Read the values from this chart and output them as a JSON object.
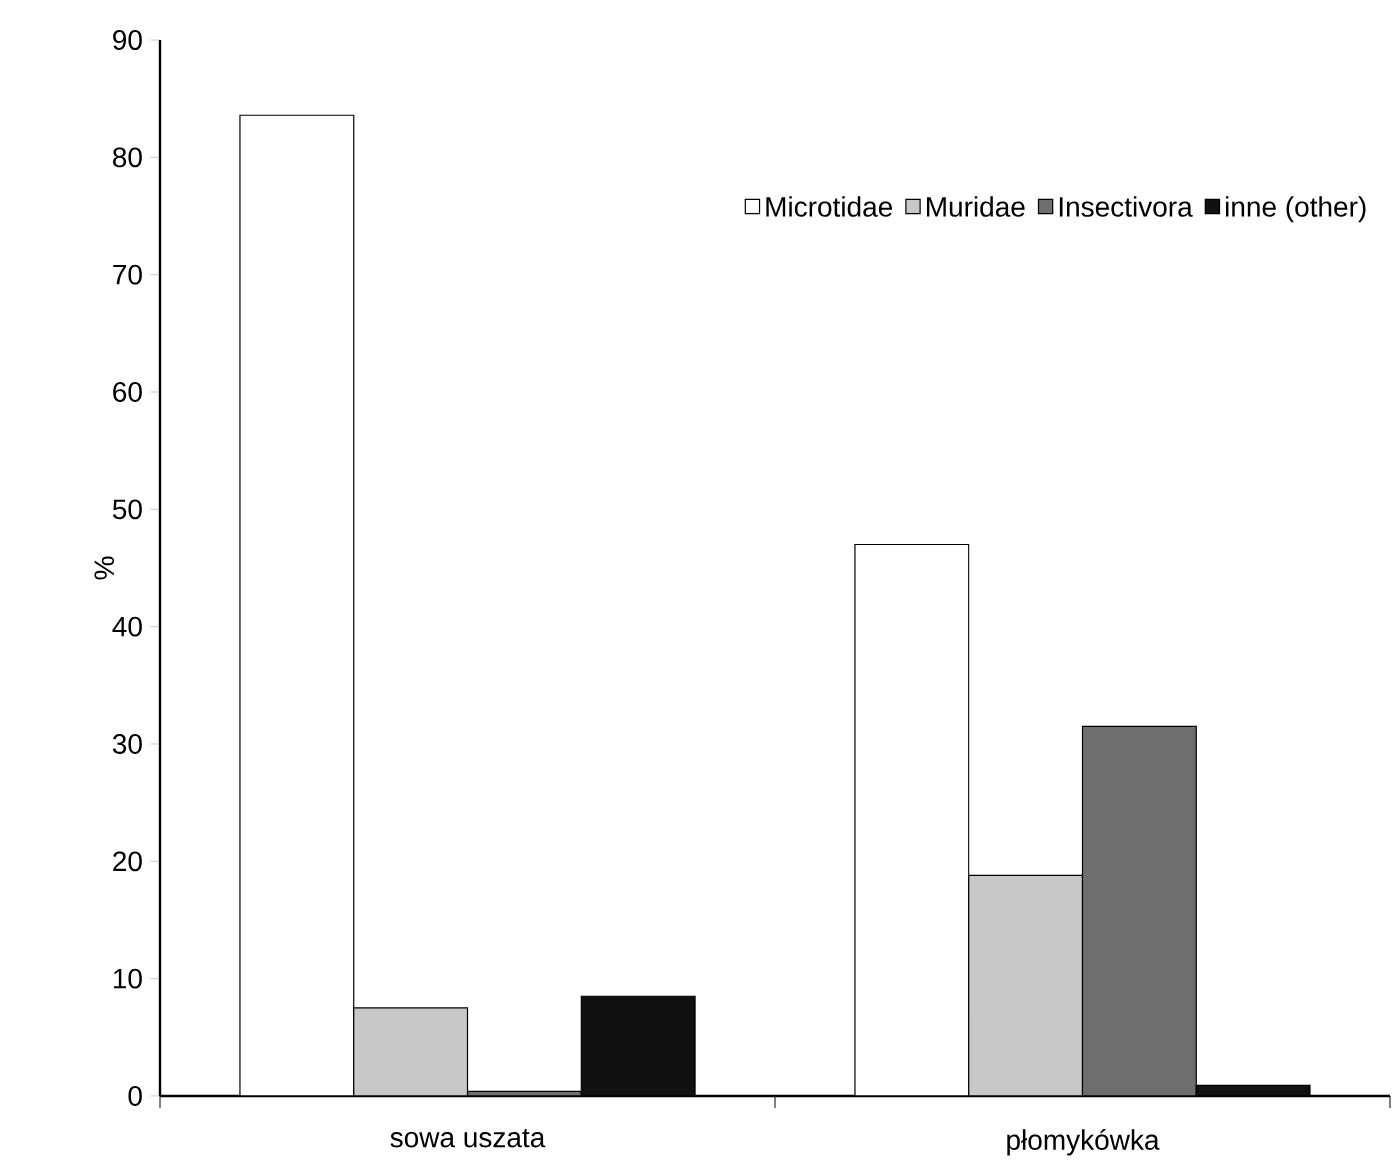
{
  "chart_data": {
    "type": "bar",
    "ylabel": "%",
    "categories": [
      "sowa uszata",
      "płomykówka"
    ],
    "series": [
      {
        "name": "Microtidae",
        "color": "#ffffff",
        "values": [
          83.6,
          47.0
        ]
      },
      {
        "name": "Muridae",
        "color": "#c8c8c8",
        "values": [
          7.5,
          18.8
        ]
      },
      {
        "name": "Insectivora",
        "color": "#6e6e6e",
        "values": [
          0.4,
          31.5
        ]
      },
      {
        "name": "inne (other)",
        "color": "#111111",
        "values": [
          8.5,
          0.9
        ]
      }
    ],
    "ylim": [
      0,
      90
    ],
    "yticks": [
      0,
      10,
      20,
      30,
      40,
      50,
      60,
      70,
      80,
      90
    ],
    "legend": "top right",
    "grid": false
  }
}
